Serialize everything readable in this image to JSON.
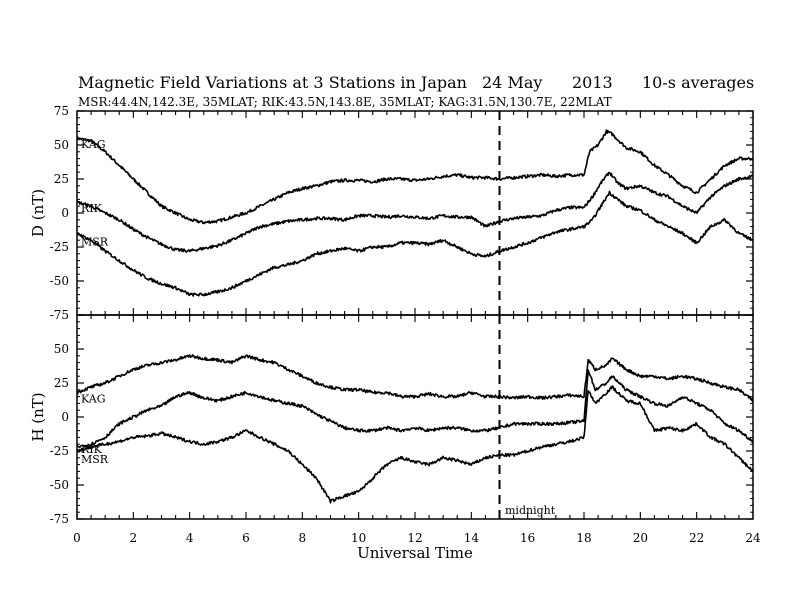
{
  "title": {
    "main": "Magnetic Field Variations at 3 Stations in Japan",
    "date": "24 May",
    "year": "2013",
    "averaging": "10-s averages",
    "stations": "MSR:44.4N,142.3E, 35MLAT;  RIK:43.5N,143.8E, 35MLAT;  KAG:31.5N,130.7E, 22MLAT"
  },
  "xaxis": {
    "label": "Universal Time",
    "ticks": [
      "0",
      "2",
      "4",
      "6",
      "8",
      "10",
      "12",
      "14",
      "16",
      "18",
      "20",
      "22",
      "24"
    ]
  },
  "yticks": [
    "75",
    "50",
    "25",
    "0",
    "-25",
    "-50",
    "-75"
  ],
  "annotation": {
    "midnight": "midnight"
  },
  "chart_data": [
    {
      "type": "line",
      "ylabel": "D (nT)",
      "ylim": [
        -75,
        75
      ],
      "xlim": [
        0,
        24
      ],
      "xlabel": "Universal Time",
      "midnight_line_x": 15,
      "series": [
        {
          "name": "KAG",
          "x": [
            0,
            0.5,
            1,
            1.5,
            2,
            2.5,
            3,
            3.5,
            4,
            4.5,
            5,
            5.5,
            6,
            6.5,
            7,
            7.5,
            8,
            8.5,
            9,
            9.5,
            10,
            10.5,
            11,
            11.5,
            12,
            12.5,
            13,
            13.5,
            14,
            14.5,
            15,
            15.5,
            16,
            16.5,
            17,
            17.5,
            18,
            18.2,
            18.5,
            18.8,
            19,
            19.5,
            20,
            20.5,
            21,
            21.5,
            22,
            22.5,
            23,
            23.5,
            24
          ],
          "y": [
            55,
            53,
            45,
            35,
            25,
            15,
            5,
            0,
            -5,
            -7,
            -6,
            -3,
            0,
            5,
            10,
            15,
            18,
            20,
            23,
            24,
            24,
            23,
            25,
            25,
            24,
            25,
            27,
            28,
            26,
            26,
            25,
            26,
            27,
            28,
            27,
            28,
            28,
            45,
            50,
            60,
            58,
            48,
            45,
            35,
            28,
            20,
            15,
            25,
            35,
            40,
            40
          ]
        },
        {
          "name": "RIK",
          "x": [
            0,
            0.5,
            1,
            1.5,
            2,
            2.5,
            3,
            3.5,
            4,
            4.5,
            5,
            5.5,
            6,
            6.5,
            7,
            7.5,
            8,
            8.5,
            9,
            9.5,
            10,
            10.5,
            11,
            11.5,
            12,
            12.5,
            13,
            13.5,
            14,
            14.5,
            15,
            15.5,
            16,
            16.5,
            17,
            17.5,
            18,
            18.3,
            18.6,
            18.9,
            19.2,
            19.5,
            20,
            20.5,
            21,
            21.5,
            22,
            22.5,
            23,
            23.5,
            24
          ],
          "y": [
            8,
            5,
            0,
            -5,
            -12,
            -18,
            -23,
            -27,
            -28,
            -26,
            -24,
            -20,
            -15,
            -10,
            -8,
            -6,
            -5,
            -4,
            -4,
            -5,
            -2,
            -2,
            -3,
            -2,
            -3,
            -4,
            -2,
            -3,
            -3,
            -10,
            -6,
            -4,
            -3,
            -2,
            2,
            4,
            4,
            12,
            22,
            30,
            22,
            18,
            20,
            15,
            12,
            5,
            0,
            12,
            20,
            25,
            27
          ]
        },
        {
          "name": "MSR",
          "x": [
            0,
            0.5,
            1,
            1.5,
            2,
            2.5,
            3,
            3.5,
            4,
            4.5,
            5,
            5.5,
            6,
            6.5,
            7,
            7.5,
            8,
            8.5,
            9,
            9.5,
            10,
            10.5,
            11,
            11.5,
            12,
            12.5,
            13,
            13.5,
            14,
            14.5,
            15,
            15.5,
            16,
            16.5,
            17,
            17.5,
            18,
            18.3,
            18.6,
            18.9,
            19.2,
            19.5,
            20,
            20.5,
            21,
            21.5,
            22,
            22.5,
            23,
            23.5,
            24
          ],
          "y": [
            -15,
            -20,
            -28,
            -35,
            -42,
            -48,
            -52,
            -55,
            -60,
            -60,
            -58,
            -55,
            -50,
            -45,
            -40,
            -38,
            -35,
            -30,
            -28,
            -26,
            -28,
            -25,
            -25,
            -22,
            -22,
            -23,
            -20,
            -25,
            -30,
            -32,
            -28,
            -25,
            -22,
            -18,
            -14,
            -12,
            -10,
            -5,
            5,
            15,
            10,
            5,
            2,
            -5,
            -10,
            -15,
            -22,
            -10,
            -5,
            -15,
            -20
          ]
        }
      ]
    },
    {
      "type": "line",
      "ylabel": "H (nT)",
      "ylim": [
        -75,
        75
      ],
      "xlim": [
        0,
        24
      ],
      "xlabel": "Universal Time",
      "midnight_line_x": 15,
      "series": [
        {
          "name": "KAG",
          "x": [
            0,
            0.5,
            1,
            1.5,
            2,
            2.5,
            3,
            3.5,
            4,
            4.5,
            5,
            5.5,
            6,
            6.5,
            7,
            7.5,
            8,
            8.5,
            9,
            9.5,
            10,
            10.5,
            11,
            11.5,
            12,
            12.5,
            13,
            13.5,
            14,
            14.5,
            15,
            15.5,
            16,
            16.5,
            17,
            17.5,
            18,
            18.15,
            18.4,
            18.8,
            19,
            19.5,
            20,
            20.5,
            21,
            21.5,
            22,
            22.5,
            23,
            23.5,
            24
          ],
          "y": [
            18,
            22,
            25,
            30,
            35,
            38,
            40,
            42,
            45,
            43,
            42,
            40,
            45,
            42,
            40,
            35,
            30,
            25,
            22,
            20,
            20,
            18,
            18,
            15,
            15,
            17,
            15,
            15,
            18,
            15,
            15,
            14,
            15,
            14,
            15,
            16,
            15,
            42,
            35,
            38,
            43,
            35,
            30,
            30,
            28,
            30,
            28,
            25,
            22,
            20,
            12
          ]
        },
        {
          "name": "RIK",
          "x": [
            0,
            0.5,
            1,
            1.5,
            2,
            2.5,
            3,
            3.5,
            4,
            4.5,
            5,
            5.5,
            6,
            6.5,
            7,
            7.5,
            8,
            8.5,
            9,
            9.5,
            10,
            10.5,
            11,
            11.5,
            12,
            12.5,
            13,
            13.5,
            14,
            14.5,
            15,
            15.5,
            16,
            16.5,
            17,
            17.5,
            18,
            18.15,
            18.4,
            18.8,
            19,
            19.5,
            20,
            20.5,
            21,
            21.5,
            22,
            22.5,
            23,
            23.5,
            24
          ],
          "y": [
            -22,
            -20,
            -15,
            -5,
            0,
            5,
            8,
            15,
            18,
            14,
            12,
            15,
            18,
            15,
            12,
            10,
            8,
            2,
            -3,
            -8,
            -10,
            -10,
            -8,
            -10,
            -8,
            -10,
            -8,
            -8,
            -10,
            -10,
            -8,
            -5,
            -5,
            -5,
            -5,
            -4,
            -3,
            35,
            20,
            25,
            30,
            20,
            15,
            10,
            8,
            15,
            10,
            5,
            -5,
            -10,
            -18
          ]
        },
        {
          "name": "MSR",
          "x": [
            0,
            0.5,
            1,
            1.5,
            2,
            2.5,
            3,
            3.5,
            4,
            4.5,
            5,
            5.5,
            6,
            6.5,
            7,
            7.5,
            8,
            8.5,
            9,
            9.5,
            10,
            10.5,
            11,
            11.5,
            12,
            12.5,
            13,
            13.5,
            14,
            14.5,
            15,
            15.5,
            16,
            16.5,
            17,
            17.5,
            18,
            18.15,
            18.4,
            18.8,
            19,
            19.5,
            20,
            20.5,
            21,
            21.5,
            22,
            22.5,
            23,
            23.5,
            24
          ],
          "y": [
            -25,
            -22,
            -20,
            -18,
            -15,
            -14,
            -12,
            -15,
            -18,
            -20,
            -18,
            -15,
            -10,
            -15,
            -20,
            -25,
            -35,
            -45,
            -62,
            -58,
            -55,
            -45,
            -35,
            -30,
            -33,
            -35,
            -30,
            -32,
            -35,
            -30,
            -28,
            -28,
            -25,
            -22,
            -20,
            -18,
            -15,
            20,
            10,
            18,
            22,
            12,
            10,
            -10,
            -8,
            -10,
            -5,
            -15,
            -20,
            -30,
            -40
          ]
        }
      ]
    }
  ]
}
